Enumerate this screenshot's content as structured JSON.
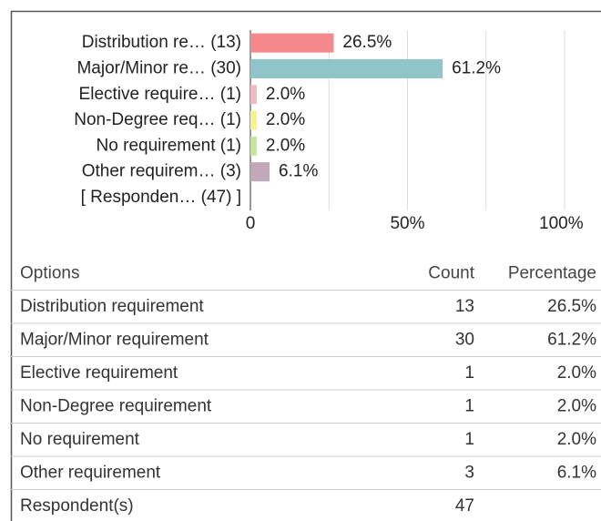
{
  "chart_data": {
    "type": "bar",
    "orientation": "horizontal",
    "categories": [
      "Distribution re… (13)",
      "Major/Minor re… (30)",
      "Elective require… (1)",
      "Non-Degree req… (1)",
      "No requirement (1)",
      "Other requirem… (3)",
      "[ Responden… (47) ]"
    ],
    "values": [
      26.5,
      61.2,
      2.0,
      2.0,
      2.0,
      6.1,
      null
    ],
    "value_labels": [
      "26.5%",
      "61.2%",
      "2.0%",
      "2.0%",
      "2.0%",
      "6.1%",
      null
    ],
    "colors": [
      "#f4888a",
      "#8fc4c8",
      "#f4b8c0",
      "#f5f38a",
      "#c6e6a0",
      "#c2a9b9",
      null
    ],
    "xlim": [
      0,
      100
    ],
    "xticks": [
      0,
      {
        "value": 50,
        "label": "50%"
      },
      {
        "value": 100,
        "label": "100%"
      }
    ],
    "xminor": [
      25,
      75
    ],
    "grid": true
  },
  "table": {
    "columns": [
      "Options",
      "Count",
      "Percentage"
    ],
    "rows": [
      [
        "Distribution requirement",
        13,
        "26.5%"
      ],
      [
        "Major/Minor requirement",
        30,
        "61.2%"
      ],
      [
        "Elective requirement",
        1,
        "2.0%"
      ],
      [
        "Non-Degree requirement",
        1,
        "2.0%"
      ],
      [
        "No requirement",
        1,
        "2.0%"
      ],
      [
        "Other requirement",
        3,
        "6.1%"
      ],
      [
        "Respondent(s)",
        47
      ]
    ]
  }
}
